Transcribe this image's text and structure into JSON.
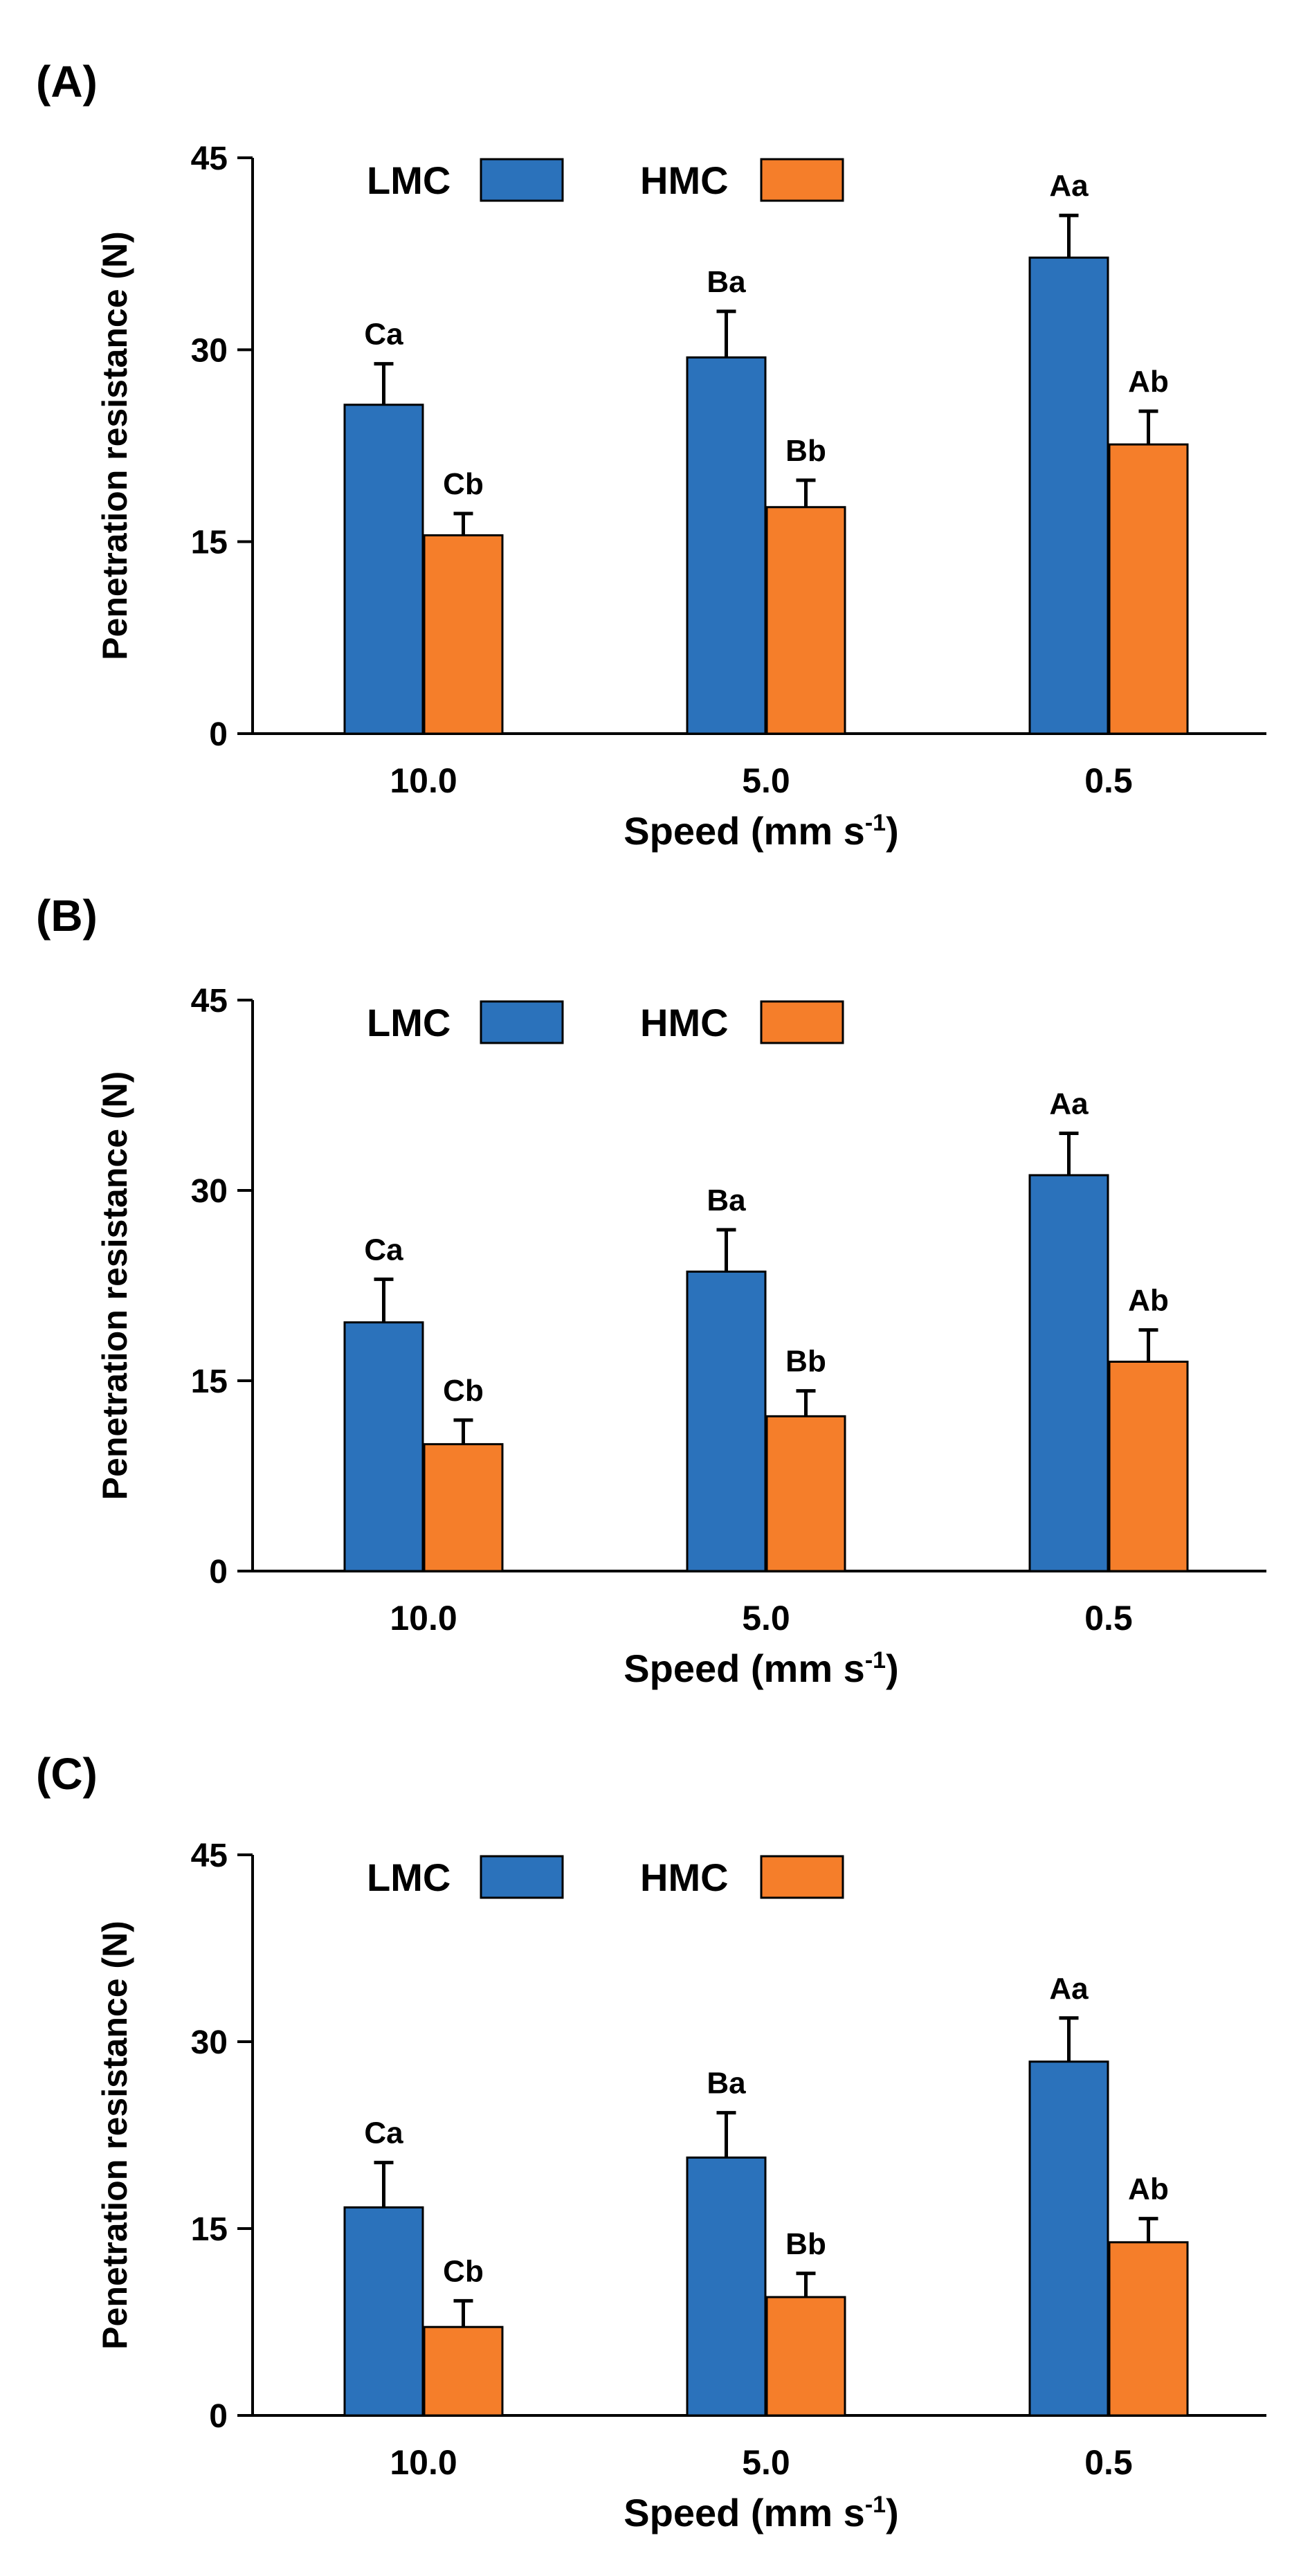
{
  "chart_data": [
    {
      "type": "bar",
      "panel_label": "(A)",
      "categories": [
        "10.0",
        "5.0",
        "0.5"
      ],
      "ylabel": "Penetration resistance (N)",
      "xlabel": "Speed (mm s",
      "xlabel_sup": "-1",
      "xlabel_close": ")",
      "ylim": [
        0,
        45
      ],
      "yticks": [
        "0",
        "15",
        "30",
        "45"
      ],
      "legend": "top",
      "series": [
        {
          "name": "LMC",
          "color": "#2b72bb",
          "values": [
            25.7,
            29.4,
            37.2
          ],
          "errors": [
            3.2,
            3.6,
            3.3
          ],
          "letters": [
            "Ca",
            "Ba",
            "Aa"
          ]
        },
        {
          "name": "HMC",
          "color": "#f57e2a",
          "values": [
            15.5,
            17.7,
            22.6
          ],
          "errors": [
            1.7,
            2.1,
            2.6
          ],
          "letters": [
            "Cb",
            "Bb",
            "Ab"
          ]
        }
      ]
    },
    {
      "type": "bar",
      "panel_label": "(B)",
      "categories": [
        "10.0",
        "5.0",
        "0.5"
      ],
      "ylabel": "Penetration resistance (N)",
      "xlabel": "Speed (mm s",
      "xlabel_sup": "-1",
      "xlabel_close": ")",
      "ylim": [
        0,
        45
      ],
      "yticks": [
        "0",
        "15",
        "30",
        "45"
      ],
      "legend": "top",
      "series": [
        {
          "name": "LMC",
          "color": "#2b72bb",
          "values": [
            19.6,
            23.6,
            31.2
          ],
          "errors": [
            3.4,
            3.3,
            3.3
          ],
          "letters": [
            "Ca",
            "Ba",
            "Aa"
          ]
        },
        {
          "name": "HMC",
          "color": "#f57e2a",
          "values": [
            10.0,
            12.2,
            16.5
          ],
          "errors": [
            1.9,
            2.0,
            2.5
          ],
          "letters": [
            "Cb",
            "Bb",
            "Ab"
          ]
        }
      ]
    },
    {
      "type": "bar",
      "panel_label": "(C)",
      "categories": [
        "10.0",
        "5.0",
        "0.5"
      ],
      "ylabel": "Penetration resistance (N)",
      "xlabel": "Speed (mm s",
      "xlabel_sup": "-1",
      "xlabel_close": ")",
      "ylim": [
        0,
        45
      ],
      "yticks": [
        "0",
        "15",
        "30",
        "45"
      ],
      "legend": "top",
      "series": [
        {
          "name": "LMC",
          "color": "#2b72bb",
          "values": [
            16.7,
            20.7,
            28.4
          ],
          "errors": [
            3.6,
            3.6,
            3.5
          ],
          "letters": [
            "Ca",
            "Ba",
            "Aa"
          ]
        },
        {
          "name": "HMC",
          "color": "#f57e2a",
          "values": [
            7.1,
            9.5,
            13.9
          ],
          "errors": [
            2.1,
            1.9,
            1.9
          ],
          "letters": [
            "Cb",
            "Bb",
            "Ab"
          ]
        }
      ]
    }
  ]
}
